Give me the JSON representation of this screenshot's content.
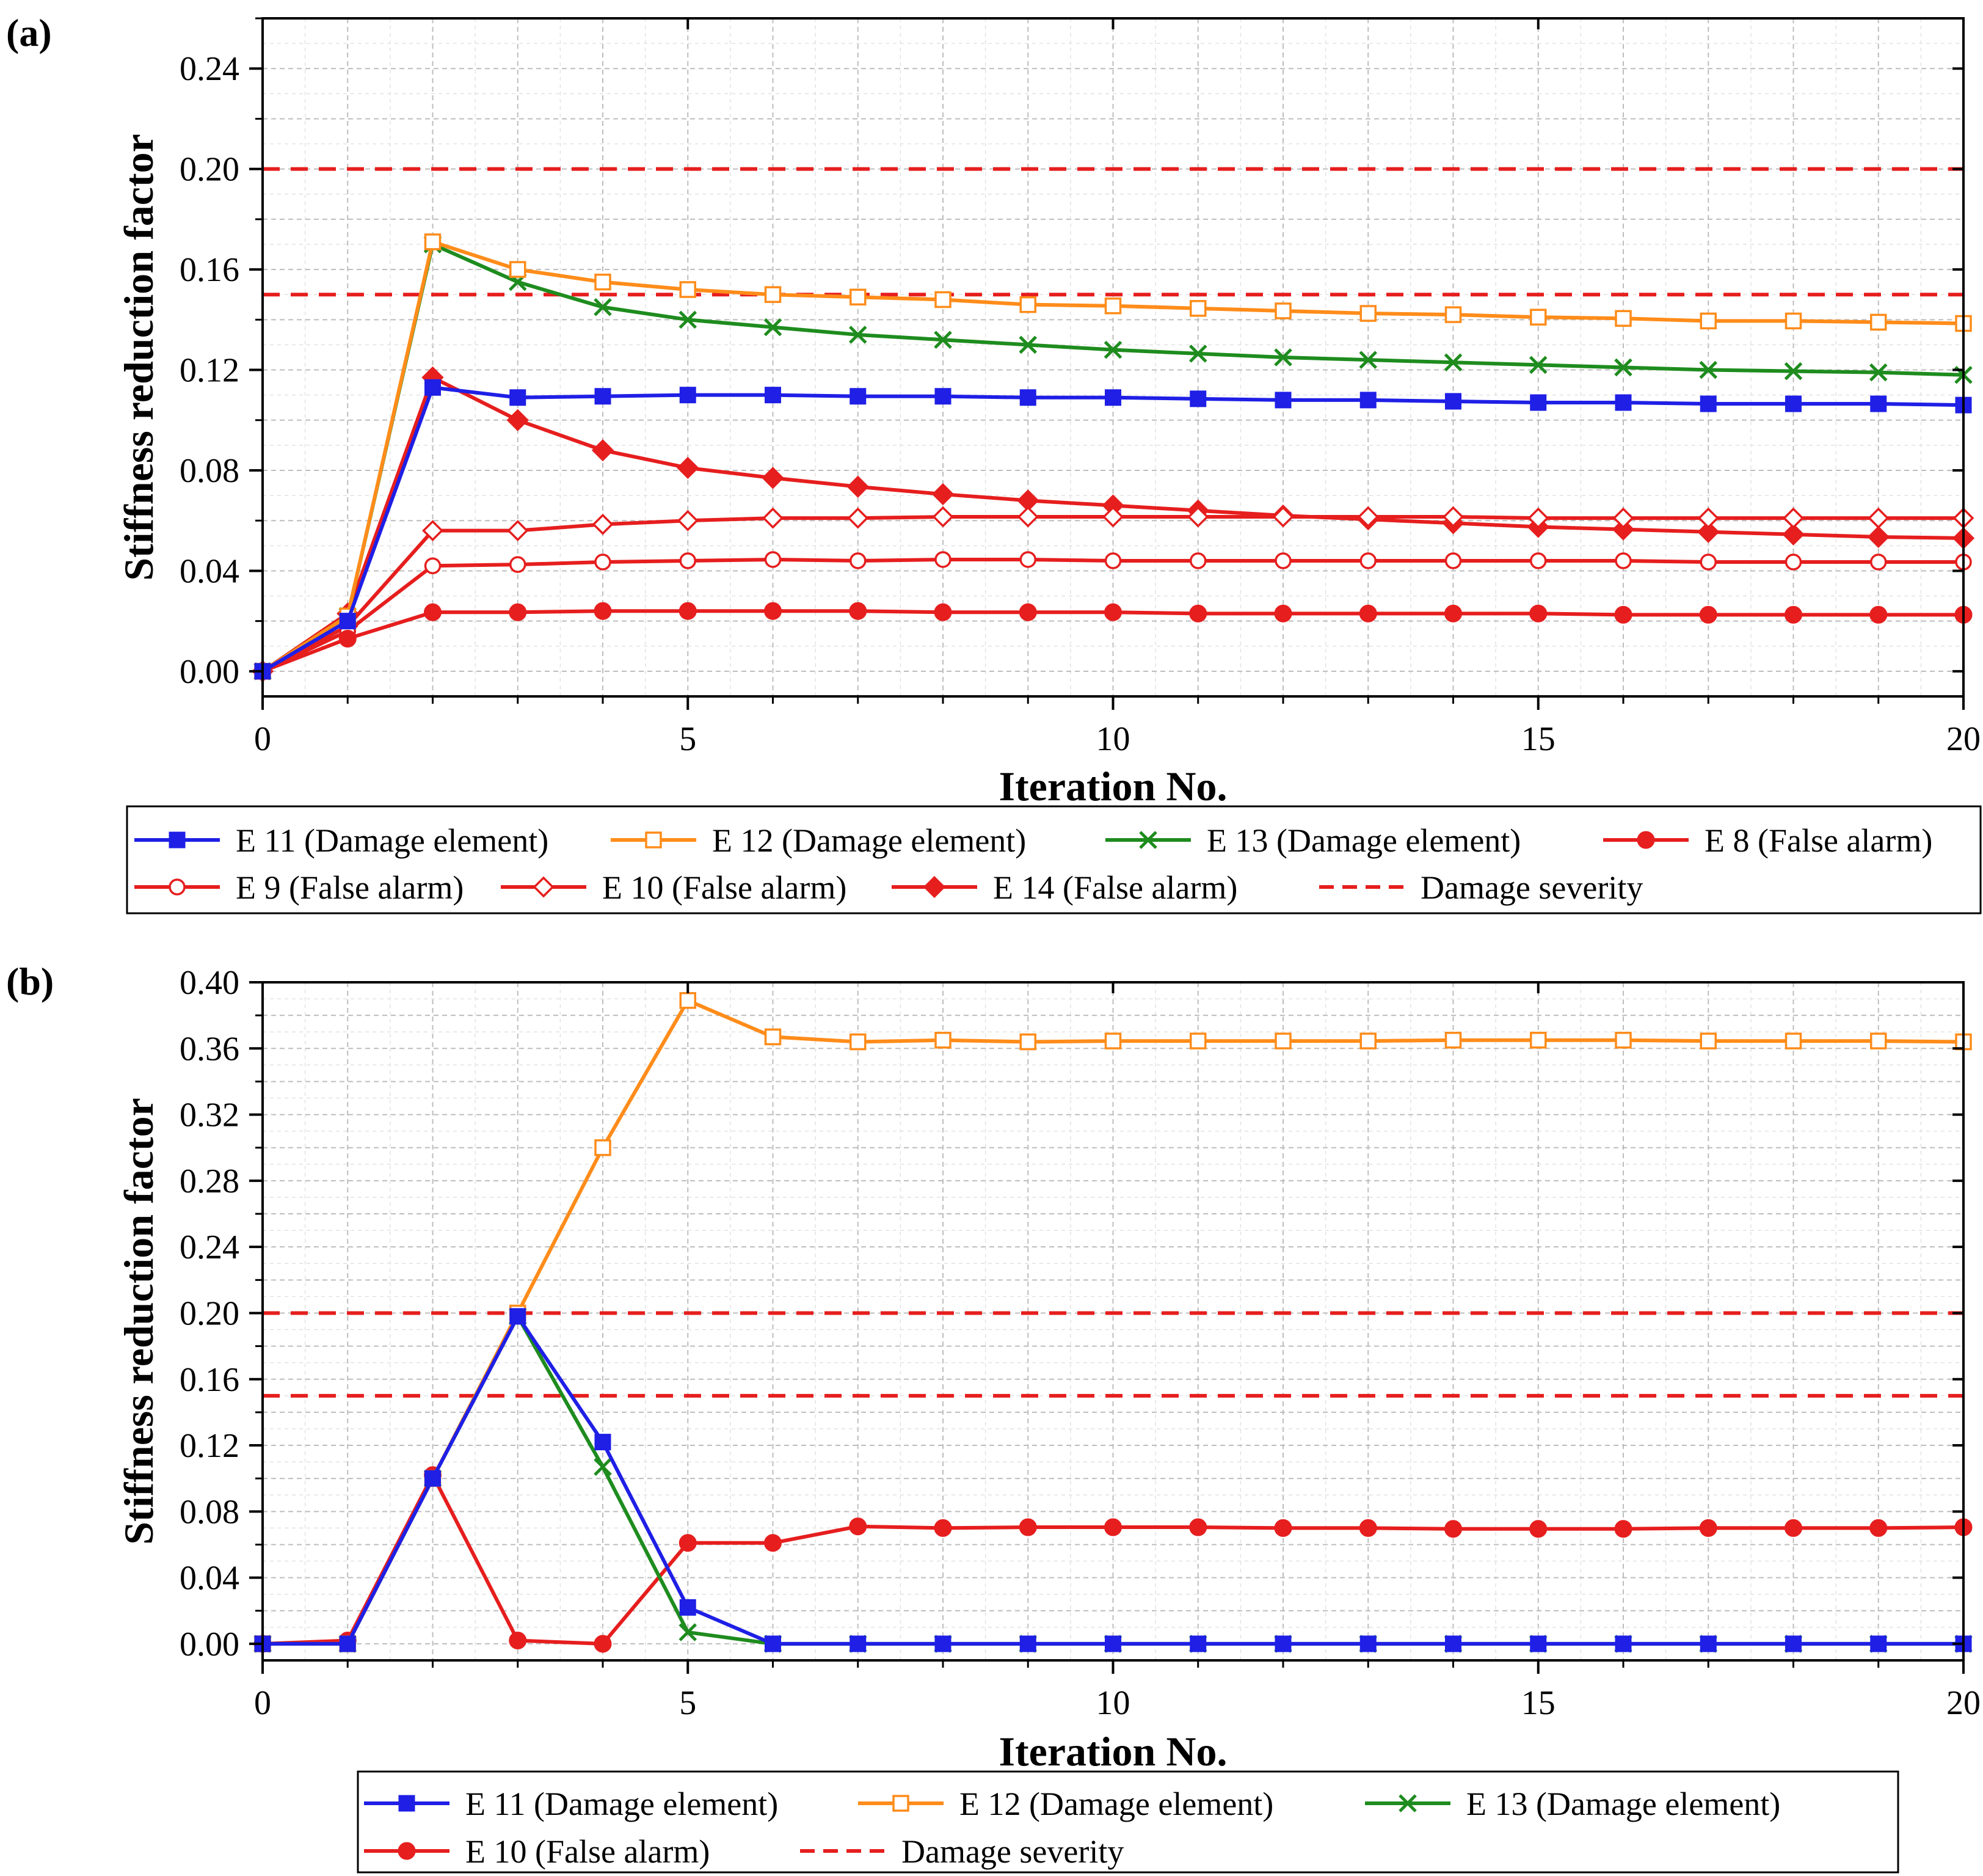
{
  "chart_data": [
    {
      "type": "line",
      "panel_label": "(a)",
      "xlabel": "Iteration No.",
      "ylabel": "Stiffness reduction factor",
      "xlim": [
        0,
        20
      ],
      "ylim": [
        -0.01,
        0.26
      ],
      "xticks": [
        0,
        5,
        10,
        15,
        20
      ],
      "xtick_labels": [
        "0",
        "5",
        "10",
        "15",
        "20"
      ],
      "yticks": [
        0.0,
        0.04,
        0.08,
        0.12,
        0.16,
        0.2,
        0.24
      ],
      "ytick_labels": [
        "0.00",
        "0.04",
        "0.08",
        "0.12",
        "0.16",
        "0.20",
        "0.24"
      ],
      "grid": true,
      "x": [
        0,
        1,
        2,
        3,
        4,
        5,
        6,
        7,
        8,
        9,
        10,
        11,
        12,
        13,
        14,
        15,
        16,
        17,
        18,
        19,
        20
      ],
      "series": [
        {
          "name": "E 11 (Damage element)",
          "color": "#1f1fe6",
          "marker": "filled-square",
          "values": [
            0,
            0.02,
            0.113,
            0.109,
            0.1095,
            0.11,
            0.11,
            0.1095,
            0.1095,
            0.109,
            0.109,
            0.1085,
            0.108,
            0.108,
            0.1075,
            0.107,
            0.107,
            0.1065,
            0.1065,
            0.1065,
            0.106
          ]
        },
        {
          "name": "E 12 (Damage element)",
          "color": "#ff8c1a",
          "marker": "open-square",
          "values": [
            0,
            0.022,
            0.171,
            0.16,
            0.155,
            0.152,
            0.15,
            0.149,
            0.148,
            0.146,
            0.1455,
            0.1445,
            0.1435,
            0.1425,
            0.142,
            0.141,
            0.1405,
            0.1395,
            0.1395,
            0.139,
            0.1385
          ]
        },
        {
          "name": "E 13 (Damage element)",
          "color": "#1e8c1e",
          "marker": "cross",
          "values": [
            0,
            0.022,
            0.17,
            0.155,
            0.145,
            0.14,
            0.137,
            0.134,
            0.132,
            0.13,
            0.128,
            0.1265,
            0.125,
            0.124,
            0.123,
            0.122,
            0.121,
            0.12,
            0.1195,
            0.119,
            0.118
          ]
        },
        {
          "name": "E 8 (False alarm)",
          "color": "#e61e1e",
          "marker": "filled-circle",
          "values": [
            0,
            0.013,
            0.0235,
            0.0235,
            0.024,
            0.024,
            0.024,
            0.024,
            0.0235,
            0.0235,
            0.0235,
            0.023,
            0.023,
            0.023,
            0.023,
            0.023,
            0.0225,
            0.0225,
            0.0225,
            0.0225,
            0.0225
          ]
        },
        {
          "name": "E 9 (False alarm)",
          "color": "#e61e1e",
          "marker": "open-circle",
          "values": [
            0,
            0.016,
            0.042,
            0.0425,
            0.0435,
            0.044,
            0.0445,
            0.044,
            0.0445,
            0.0445,
            0.044,
            0.044,
            0.044,
            0.044,
            0.044,
            0.044,
            0.044,
            0.0435,
            0.0435,
            0.0435,
            0.0435
          ]
        },
        {
          "name": "E 10 (False alarm)",
          "color": "#e61e1e",
          "marker": "open-diamond",
          "values": [
            0,
            0.018,
            0.056,
            0.056,
            0.0585,
            0.06,
            0.061,
            0.061,
            0.0615,
            0.0615,
            0.0615,
            0.0615,
            0.0615,
            0.0615,
            0.0615,
            0.061,
            0.061,
            0.061,
            0.061,
            0.061,
            0.061
          ]
        },
        {
          "name": "E 14 (False alarm)",
          "color": "#e61e1e",
          "marker": "filled-diamond",
          "values": [
            0,
            0.023,
            0.117,
            0.1,
            0.088,
            0.081,
            0.077,
            0.0735,
            0.0705,
            0.068,
            0.066,
            0.064,
            0.062,
            0.0605,
            0.059,
            0.0575,
            0.0565,
            0.0555,
            0.0545,
            0.0535,
            0.053
          ]
        }
      ],
      "reference_lines": {
        "name": "Damage severity",
        "color": "#e61e1e",
        "style": "dashed",
        "values": [
          0.15,
          0.2
        ]
      },
      "legend": {
        "placement": "below",
        "columns": 4
      }
    },
    {
      "type": "line",
      "panel_label": "(b)",
      "xlabel": "Iteration No.",
      "ylabel": "Stiffness reduction factor",
      "xlim": [
        0,
        20
      ],
      "ylim": [
        -0.01,
        0.4
      ],
      "xticks": [
        0,
        5,
        10,
        15,
        20
      ],
      "xtick_labels": [
        "0",
        "5",
        "10",
        "15",
        "20"
      ],
      "yticks": [
        0.0,
        0.04,
        0.08,
        0.12,
        0.16,
        0.2,
        0.24,
        0.28,
        0.32,
        0.36,
        0.4
      ],
      "ytick_labels": [
        "0.00",
        "0.04",
        "0.08",
        "0.12",
        "0.16",
        "0.20",
        "0.24",
        "0.28",
        "0.32",
        "0.36",
        "0.40"
      ],
      "grid": true,
      "x": [
        0,
        1,
        2,
        3,
        4,
        5,
        6,
        7,
        8,
        9,
        10,
        11,
        12,
        13,
        14,
        15,
        16,
        17,
        18,
        19,
        20
      ],
      "series": [
        {
          "name": "E 11 (Damage element)",
          "color": "#1f1fe6",
          "marker": "filled-square",
          "values": [
            0,
            0,
            0.1,
            0.198,
            0.122,
            0.022,
            0,
            0,
            0,
            0,
            0,
            0,
            0,
            0,
            0,
            0,
            0,
            0,
            0,
            0,
            0
          ]
        },
        {
          "name": "E 12 (Damage element)",
          "color": "#ff8c1a",
          "marker": "open-square",
          "values": [
            0,
            0,
            0.1,
            0.2,
            0.3,
            0.389,
            0.367,
            0.364,
            0.365,
            0.364,
            0.3645,
            0.3645,
            0.3645,
            0.3645,
            0.365,
            0.365,
            0.365,
            0.3645,
            0.3645,
            0.3645,
            0.364
          ]
        },
        {
          "name": "E 13 (Damage element)",
          "color": "#1e8c1e",
          "marker": "cross",
          "values": [
            0,
            0,
            0.1,
            0.198,
            0.107,
            0.007,
            0,
            0,
            0,
            0,
            0,
            0,
            0,
            0,
            0,
            0,
            0,
            0,
            0,
            0,
            0
          ]
        },
        {
          "name": "E 10 (False alarm)",
          "color": "#e61e1e",
          "marker": "filled-circle",
          "values": [
            0,
            0.002,
            0.102,
            0.002,
            0,
            0.061,
            0.061,
            0.071,
            0.07,
            0.0705,
            0.0705,
            0.0705,
            0.07,
            0.07,
            0.0695,
            0.0695,
            0.0695,
            0.07,
            0.07,
            0.07,
            0.0705
          ]
        }
      ],
      "reference_lines": {
        "name": "Damage severity",
        "color": "#e61e1e",
        "style": "dashed",
        "values": [
          0.15,
          0.2
        ]
      },
      "legend": {
        "placement": "below",
        "columns": 3
      }
    }
  ]
}
